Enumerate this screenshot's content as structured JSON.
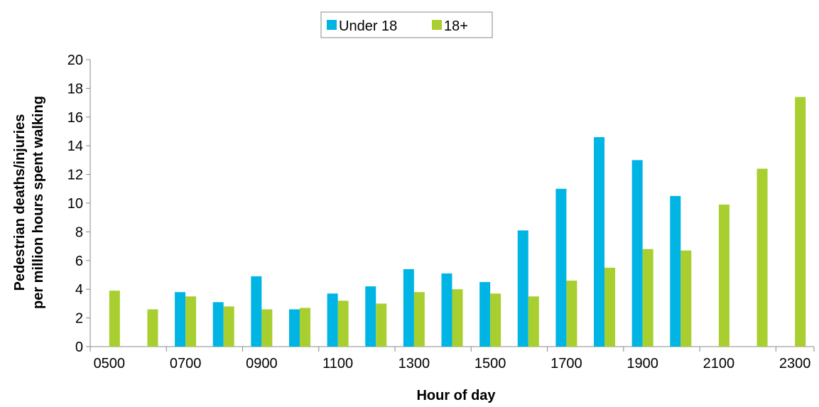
{
  "chart_data": {
    "type": "bar",
    "xlabel": "Hour of day",
    "ylabel_lines": [
      "Pedestrian deaths/injuries",
      "per million hours spent walking"
    ],
    "ylim": [
      0,
      20
    ],
    "y_ticks": [
      "0",
      "2",
      "4",
      "6",
      "8",
      "10",
      "12",
      "14",
      "16",
      "18",
      "20"
    ],
    "categories": [
      "0500",
      "0600",
      "0700",
      "0800",
      "0900",
      "1000",
      "1100",
      "1200",
      "1300",
      "1400",
      "1500",
      "1600",
      "1700",
      "1800",
      "1900",
      "2000",
      "2100",
      "2200",
      "2300"
    ],
    "x_tick_labels": [
      "0500",
      "0700",
      "0900",
      "1100",
      "1300",
      "1500",
      "1700",
      "1900",
      "2100",
      "2300"
    ],
    "legend_position": "top-center",
    "grid": false,
    "series": [
      {
        "name": "Under 18",
        "color": "#00b4e4",
        "values": [
          null,
          null,
          3.8,
          3.1,
          4.9,
          2.6,
          3.7,
          4.2,
          5.4,
          5.1,
          4.5,
          8.1,
          11.0,
          14.6,
          13.0,
          10.5,
          null,
          null,
          null
        ]
      },
      {
        "name": "18+",
        "color": "#a8cf2f",
        "values": [
          3.9,
          2.6,
          3.5,
          2.8,
          2.6,
          2.7,
          3.2,
          3.0,
          3.8,
          4.0,
          3.7,
          3.5,
          4.6,
          5.5,
          6.8,
          6.7,
          9.9,
          12.4,
          17.4
        ]
      }
    ]
  }
}
